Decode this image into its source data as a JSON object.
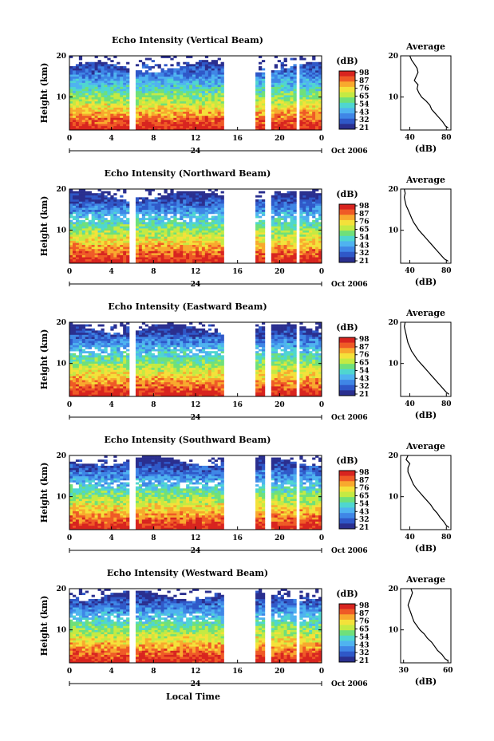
{
  "figure": {
    "xlabel": "Local Time",
    "colorscale": [
      "#2a2f8f",
      "#2f58c8",
      "#3f86e6",
      "#4fb3f0",
      "#4fd6d0",
      "#6fe07a",
      "#c4ea43",
      "#f4e13a",
      "#f8a92e",
      "#ef5a26",
      "#d8241f"
    ],
    "pattern": {
      "no_data_time_ranges": [
        [
          5.8,
          6.2
        ],
        [
          14.6,
          17.6
        ],
        [
          18.7,
          19.1
        ],
        [
          21.6,
          21.9
        ]
      ]
    }
  },
  "chart_data": [
    {
      "type": "heatmap",
      "title": "Echo Intensity (Vertical Beam)",
      "ylabel": "Height (km)",
      "xticks": [
        "0",
        "4",
        "8",
        "12",
        "16",
        "20",
        "0"
      ],
      "xlim": [
        0,
        24
      ],
      "yticks": [
        "20",
        "10"
      ],
      "ylim": [
        2,
        20
      ],
      "date_ticks": [
        "24"
      ],
      "date_label": "Oct 2006",
      "colorbar": {
        "unit": "(dB)",
        "ticks": [
          "98",
          "87",
          "76",
          "65",
          "54",
          "43",
          "32",
          "21"
        ]
      },
      "profile": {
        "title": "Average",
        "xlabel": "(dB)",
        "xticks": [
          "40",
          "80"
        ],
        "xlim": [
          30,
          85
        ],
        "yticks": [
          "20",
          "10"
        ],
        "ylim": [
          2,
          20
        ],
        "height_km": [
          2.5,
          3,
          4,
          5,
          6,
          7,
          8,
          9,
          10,
          11,
          12,
          13,
          14,
          15,
          16,
          17,
          18,
          19,
          20
        ],
        "avg_db": [
          82,
          79,
          76,
          72,
          68,
          64,
          62,
          58,
          53,
          50,
          48,
          49,
          45,
          47,
          49,
          48,
          45,
          42,
          40
        ]
      }
    },
    {
      "type": "heatmap",
      "title": "Echo Intensity (Northward Beam)",
      "ylabel": "Height (km)",
      "xticks": [
        "0",
        "4",
        "8",
        "12",
        "16",
        "20",
        "0"
      ],
      "xlim": [
        0,
        24
      ],
      "yticks": [
        "20",
        "10"
      ],
      "ylim": [
        2,
        20
      ],
      "date_ticks": [
        "24"
      ],
      "date_label": "Oct 2006",
      "colorbar": {
        "unit": "(dB)",
        "ticks": [
          "98",
          "87",
          "76",
          "65",
          "54",
          "43",
          "32",
          "21"
        ]
      },
      "profile": {
        "title": "Average",
        "xlabel": "(dB)",
        "xticks": [
          "40",
          "80"
        ],
        "xlim": [
          30,
          85
        ],
        "yticks": [
          "20",
          "10"
        ],
        "ylim": [
          2,
          20
        ],
        "height_km": [
          2.5,
          3,
          4,
          5,
          6,
          7,
          8,
          9,
          10,
          11,
          12,
          13,
          14,
          15,
          16,
          17,
          18,
          19,
          20
        ],
        "avg_db": [
          82,
          78,
          74,
          70,
          66,
          62,
          58,
          54,
          50,
          47,
          44,
          42,
          40,
          38,
          36,
          35,
          34,
          35,
          34
        ]
      }
    },
    {
      "type": "heatmap",
      "title": "Echo Intensity (Eastward Beam)",
      "ylabel": "Height (km)",
      "xticks": [
        "0",
        "4",
        "8",
        "12",
        "16",
        "20",
        "0"
      ],
      "xlim": [
        0,
        24
      ],
      "yticks": [
        "20",
        "10"
      ],
      "ylim": [
        2,
        20
      ],
      "date_ticks": [
        "24"
      ],
      "date_label": "Oct 2006",
      "colorbar": {
        "unit": "(dB)",
        "ticks": [
          "98",
          "87",
          "76",
          "65",
          "54",
          "43",
          "32",
          "21"
        ]
      },
      "profile": {
        "title": "Average",
        "xlabel": "(dB)",
        "xticks": [
          "40",
          "80"
        ],
        "xlim": [
          30,
          85
        ],
        "yticks": [
          "20",
          "10"
        ],
        "ylim": [
          2,
          20
        ],
        "height_km": [
          2.5,
          3,
          4,
          5,
          6,
          7,
          8,
          9,
          10,
          11,
          12,
          13,
          14,
          15,
          16,
          17,
          18,
          19,
          20
        ],
        "avg_db": [
          83,
          80,
          76,
          72,
          68,
          64,
          60,
          56,
          52,
          48,
          45,
          42,
          40,
          38,
          37,
          36,
          35,
          34,
          35
        ]
      }
    },
    {
      "type": "heatmap",
      "title": "Echo Intensity (Southward Beam)",
      "ylabel": "Height (km)",
      "xticks": [
        "0",
        "4",
        "8",
        "12",
        "16",
        "20",
        "0"
      ],
      "xlim": [
        0,
        24
      ],
      "yticks": [
        "20",
        "10"
      ],
      "ylim": [
        2,
        20
      ],
      "date_ticks": [
        "24"
      ],
      "date_label": "Oct 2006",
      "colorbar": {
        "unit": "(dB)",
        "ticks": [
          "98",
          "87",
          "76",
          "65",
          "54",
          "43",
          "32",
          "21"
        ]
      },
      "profile": {
        "title": "Average",
        "xlabel": "(dB)",
        "xticks": [
          "40",
          "80"
        ],
        "xlim": [
          30,
          85
        ],
        "yticks": [
          "20",
          "10"
        ],
        "ylim": [
          2,
          20
        ],
        "height_km": [
          2.5,
          3,
          4,
          5,
          6,
          7,
          8,
          9,
          10,
          11,
          12,
          13,
          14,
          15,
          16,
          17,
          18,
          19,
          20
        ],
        "avg_db": [
          83,
          80,
          77,
          73,
          70,
          66,
          63,
          59,
          55,
          51,
          47,
          44,
          42,
          40,
          38,
          38,
          40,
          36,
          38
        ]
      }
    },
    {
      "type": "heatmap",
      "title": "Echo Intensity (Westward Beam)",
      "ylabel": "Height (km)",
      "xticks": [
        "0",
        "4",
        "8",
        "12",
        "16",
        "20",
        "0"
      ],
      "xlim": [
        0,
        24
      ],
      "yticks": [
        "20",
        "10"
      ],
      "ylim": [
        2,
        20
      ],
      "date_ticks": [
        "24"
      ],
      "date_label": "Oct 2006",
      "colorbar": {
        "unit": "(dB)",
        "ticks": [
          "98",
          "87",
          "76",
          "65",
          "54",
          "43",
          "32",
          "21"
        ]
      },
      "profile": {
        "title": "Average",
        "xlabel": "(dB)",
        "xticks": [
          "30",
          "60"
        ],
        "xlim": [
          28,
          62
        ],
        "yticks": [
          "20",
          "10"
        ],
        "ylim": [
          2,
          20
        ],
        "height_km": [
          2.5,
          3,
          4,
          5,
          6,
          7,
          8,
          9,
          10,
          11,
          12,
          13,
          14,
          15,
          16,
          17,
          18,
          19,
          20
        ],
        "avg_db": [
          60,
          58,
          56,
          53,
          51,
          49,
          46,
          44,
          41,
          39,
          37,
          36,
          35,
          34,
          33,
          34,
          35,
          36,
          35
        ]
      }
    }
  ]
}
